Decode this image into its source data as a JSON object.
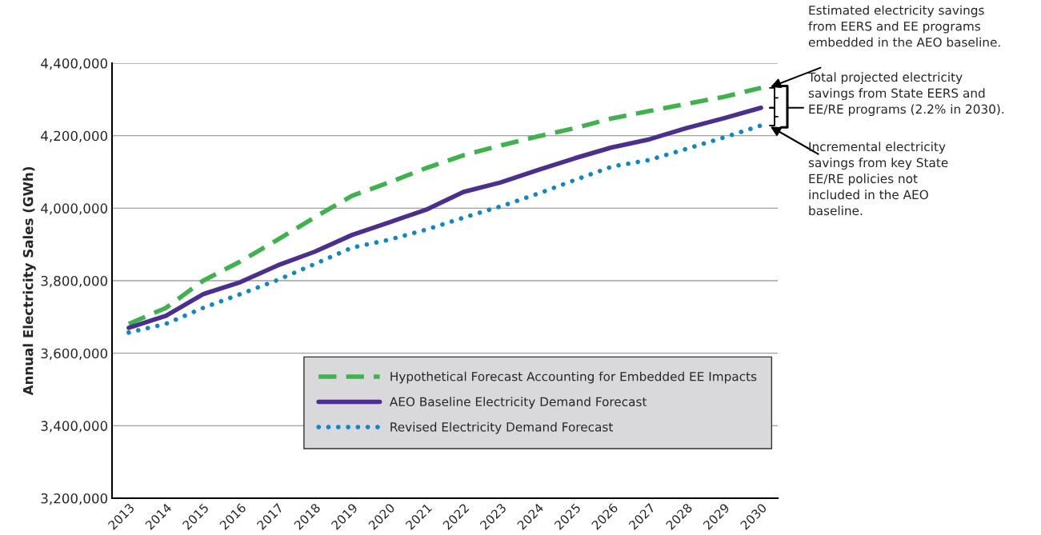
{
  "chart_data": {
    "type": "line",
    "ylabel": "Annual Electricity Sales (GWh)",
    "categories": [
      "2013",
      "2014",
      "2015",
      "2016",
      "2017",
      "2018",
      "2019",
      "2020",
      "2021",
      "2022",
      "2023",
      "2024",
      "2025",
      "2026",
      "2027",
      "2028",
      "2029",
      "2030"
    ],
    "series": [
      {
        "name": "Hypothetical Forecast Accounting for Embedded EE Impacts",
        "color": "#3cb44b",
        "line_style": "dashed",
        "values": [
          3681000,
          3725000,
          3800000,
          3853000,
          3913000,
          3975000,
          4034000,
          4071000,
          4111000,
          4146000,
          4173000,
          4198000,
          4221000,
          4248000,
          4268000,
          4288000,
          4307000,
          4332000
        ]
      },
      {
        "name": "AEO Baseline Electricity Demand Forecast",
        "color": "#4b2e91",
        "line_style": "solid",
        "values": [
          3670000,
          3703000,
          3763000,
          3796000,
          3842000,
          3880000,
          3926000,
          3961000,
          3996000,
          4045000,
          4071000,
          4105000,
          4138000,
          4168000,
          4190000,
          4221000,
          4248000,
          4277000
        ]
      },
      {
        "name": "Revised Electricity Demand Forecast",
        "color": "#0a88c9",
        "line_style": "dotted",
        "values": [
          3657000,
          3681000,
          3725000,
          3763000,
          3802000,
          3846000,
          3891000,
          3913000,
          3941000,
          3974000,
          4005000,
          4040000,
          4078000,
          4115000,
          4133000,
          4164000,
          4195000,
          4228000
        ]
      }
    ],
    "ylim": [
      3200000,
      4400000
    ],
    "yticks": [
      {
        "value": 3200000,
        "label": "3,200,000"
      },
      {
        "value": 3400000,
        "label": "3,400,000"
      },
      {
        "value": 3600000,
        "label": "3,600,000"
      },
      {
        "value": 3800000,
        "label": "3,800,000"
      },
      {
        "value": 4000000,
        "label": "4,000,000"
      },
      {
        "value": 4200000,
        "label": "4,200,000"
      },
      {
        "value": 4400000,
        "label": "4,400,000"
      }
    ],
    "grid": "y",
    "legend": "bottom right",
    "annotations": [
      "Estimated electricity savings\nfrom EERS and EE programs\nembedded in the AEO baseline.",
      "Total projected electricity\nsavings from State EERS and\nEE/RE programs (2.2% in 2030).",
      "Incremental electricity\nsavings from key State\nEE/RE policies not\nincluded in the AEO\nbaseline."
    ]
  }
}
